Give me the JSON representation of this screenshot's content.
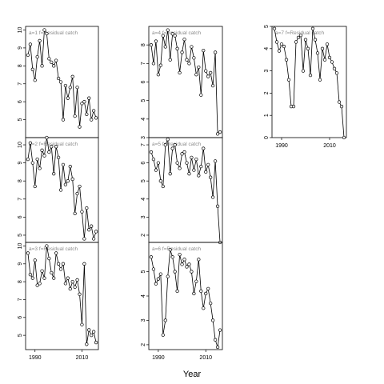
{
  "chart_data": {
    "type": "line",
    "xlabel": "Year",
    "grid": false,
    "series_style": "line with open circle markers",
    "panels": [
      {
        "title": "a=1  f=Residual catch",
        "xlim": [
          1986,
          2017
        ],
        "ylim": [
          4,
          10.2
        ],
        "yticks": [
          5,
          6,
          7,
          8,
          9,
          10
        ],
        "xticks": [],
        "xtick_labels": [],
        "x": [
          1987,
          1988,
          1989,
          1990,
          1991,
          1992,
          1993,
          1994,
          1995,
          1996,
          1997,
          1998,
          1999,
          2000,
          2001,
          2002,
          2003,
          2004,
          2005,
          2006,
          2007,
          2008,
          2009,
          2010,
          2011,
          2012,
          2013,
          2014,
          2015,
          2016
        ],
        "y": [
          8.6,
          9.2,
          7.8,
          7.2,
          8.5,
          9.4,
          8.0,
          10.0,
          9.8,
          8.4,
          8.2,
          8.0,
          8.3,
          7.3,
          7.1,
          5.0,
          6.9,
          6.2,
          6.8,
          7.4,
          5.2,
          6.8,
          4.6,
          5.9,
          6.0,
          5.3,
          6.2,
          5.0,
          5.5,
          5.1
        ]
      },
      {
        "title": "a=4  f=Residual catch",
        "xlim": [
          1986,
          2017
        ],
        "ylim": [
          3,
          9
        ],
        "yticks": [
          3,
          4,
          5,
          6,
          7,
          8
        ],
        "xticks": [],
        "xtick_labels": [],
        "x": [
          1987,
          1988,
          1989,
          1990,
          1991,
          1992,
          1993,
          1994,
          1995,
          1996,
          1997,
          1998,
          1999,
          2000,
          2001,
          2002,
          2003,
          2004,
          2005,
          2006,
          2007,
          2008,
          2009,
          2010,
          2011,
          2012,
          2013,
          2014,
          2015,
          2016
        ],
        "y": [
          8.0,
          7.0,
          8.2,
          6.4,
          6.9,
          8.5,
          7.9,
          8.8,
          7.2,
          8.6,
          8.5,
          7.8,
          6.5,
          7.6,
          8.3,
          7.2,
          7.0,
          7.9,
          7.3,
          6.4,
          6.8,
          5.3,
          7.7,
          6.6,
          6.3,
          6.5,
          5.8,
          7.6,
          3.2,
          3.3
        ]
      },
      {
        "title": "a=7  f=Residual catch",
        "xlim": [
          1986,
          2017
        ],
        "ylim": [
          0,
          5
        ],
        "yticks": [
          0,
          1,
          2,
          3,
          4,
          5
        ],
        "xticks": [
          1990,
          2010
        ],
        "xtick_labels": [
          "1990",
          "2010"
        ],
        "x": [
          1987,
          1988,
          1989,
          1990,
          1991,
          1992,
          1993,
          1994,
          1995,
          1996,
          1997,
          1998,
          1999,
          2000,
          2001,
          2002,
          2003,
          2004,
          2005,
          2006,
          2007,
          2008,
          2009,
          2010,
          2011,
          2012,
          2013,
          2014,
          2015,
          2016
        ],
        "y": [
          4.9,
          4.3,
          3.9,
          4.2,
          4.1,
          3.5,
          2.6,
          1.4,
          1.4,
          4.3,
          4.5,
          4.6,
          3.0,
          4.4,
          4.0,
          2.8,
          4.9,
          4.4,
          3.8,
          2.6,
          4.0,
          3.5,
          4.2,
          3.6,
          3.4,
          3.1,
          2.9,
          1.6,
          1.4,
          0.0
        ]
      },
      {
        "title": "a=2  f=Residual catch",
        "xlim": [
          1986,
          2017
        ],
        "ylim": [
          4.6,
          10.4
        ],
        "yticks": [
          5,
          6,
          7,
          8,
          9,
          10
        ],
        "xticks": [],
        "xtick_labels": [],
        "x": [
          1987,
          1988,
          1989,
          1990,
          1991,
          1992,
          1993,
          1994,
          1995,
          1996,
          1997,
          1998,
          1999,
          2000,
          2001,
          2002,
          2003,
          2004,
          2005,
          2006,
          2007,
          2008,
          2009,
          2010,
          2011,
          2012,
          2013,
          2014,
          2015,
          2016
        ],
        "y": [
          9.2,
          10.1,
          9.0,
          7.7,
          9.2,
          8.7,
          9.7,
          9.4,
          10.4,
          9.6,
          9.9,
          8.4,
          9.9,
          9.3,
          7.5,
          8.9,
          7.8,
          8.0,
          8.8,
          8.1,
          6.2,
          7.3,
          7.7,
          6.3,
          4.8,
          6.5,
          5.3,
          5.5,
          4.8,
          5.2
        ]
      },
      {
        "title": "a=5  f=Residual catch",
        "xlim": [
          1986,
          2017
        ],
        "ylim": [
          1.6,
          7.4
        ],
        "yticks": [
          2,
          3,
          4,
          5,
          6,
          7
        ],
        "xticks": [],
        "xtick_labels": [],
        "x": [
          1987,
          1988,
          1989,
          1990,
          1991,
          1992,
          1993,
          1994,
          1995,
          1996,
          1997,
          1998,
          1999,
          2000,
          2001,
          2002,
          2003,
          2004,
          2005,
          2006,
          2007,
          2008,
          2009,
          2010,
          2011,
          2012,
          2013,
          2014,
          2015,
          2016
        ],
        "y": [
          6.6,
          6.2,
          5.6,
          6.0,
          5.0,
          4.7,
          7.0,
          7.3,
          5.4,
          6.8,
          7.0,
          6.0,
          5.7,
          6.5,
          6.6,
          6.0,
          5.4,
          6.3,
          5.6,
          6.2,
          5.3,
          5.8,
          6.8,
          5.5,
          5.9,
          5.2,
          4.1,
          6.1,
          3.6,
          1.6
        ]
      },
      {
        "title": "a=3  f=Residual catch",
        "xlim": [
          1986,
          2017
        ],
        "ylim": [
          4.2,
          10.2
        ],
        "yticks": [
          5,
          6,
          7,
          8,
          9,
          10
        ],
        "xticks": [
          1990,
          2010
        ],
        "xtick_labels": [
          "1990",
          "2010"
        ],
        "x": [
          1987,
          1988,
          1989,
          1990,
          1991,
          1992,
          1993,
          1994,
          1995,
          1996,
          1997,
          1998,
          1999,
          2000,
          2001,
          2002,
          2003,
          2004,
          2005,
          2006,
          2007,
          2008,
          2009,
          2010,
          2011,
          2012,
          2013,
          2014,
          2015,
          2016
        ],
        "y": [
          9.6,
          8.4,
          8.2,
          9.2,
          7.8,
          7.9,
          8.6,
          8.2,
          10.0,
          9.3,
          8.5,
          8.2,
          9.6,
          9.0,
          8.7,
          9.0,
          7.9,
          8.2,
          7.6,
          8.0,
          7.7,
          8.1,
          7.3,
          5.6,
          9.0,
          4.5,
          5.3,
          5.0,
          5.2,
          4.6
        ]
      },
      {
        "title": "a=6  f=Residual catch",
        "xlim": [
          1986,
          2017
        ],
        "ylim": [
          1.8,
          6.2
        ],
        "yticks": [
          2,
          3,
          4,
          5
        ],
        "xticks": [
          1990,
          2010
        ],
        "xtick_labels": [
          "1990",
          "2010"
        ],
        "x": [
          1987,
          1988,
          1989,
          1990,
          1991,
          1992,
          1993,
          1994,
          1995,
          1996,
          1997,
          1998,
          1999,
          2000,
          2001,
          2002,
          2003,
          2004,
          2005,
          2006,
          2007,
          2008,
          2009,
          2010,
          2011,
          2012,
          2013,
          2014,
          2015,
          2016
        ],
        "y": [
          5.6,
          5.1,
          4.5,
          4.7,
          4.9,
          2.4,
          3.0,
          4.8,
          5.9,
          5.6,
          5.0,
          4.2,
          5.7,
          5.3,
          5.5,
          5.2,
          5.3,
          5.0,
          4.1,
          4.6,
          5.5,
          4.2,
          3.5,
          4.1,
          4.3,
          3.7,
          3.0,
          2.2,
          1.9,
          2.6
        ]
      }
    ]
  }
}
